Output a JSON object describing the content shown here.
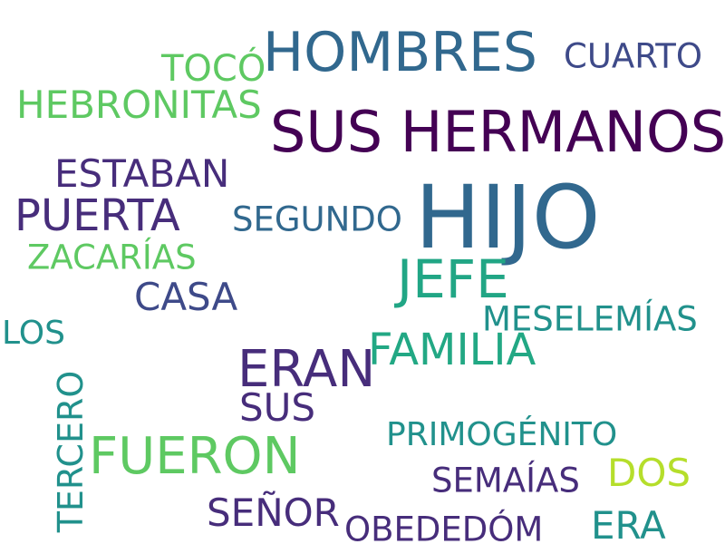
{
  "words": {
    "hijo": {
      "text": "HIJO",
      "color": "#31688e"
    },
    "sus_hermanos": {
      "text": "SUS HERMANOS",
      "color": "#440154"
    },
    "hombres": {
      "text": "HOMBRES",
      "color": "#31688e"
    },
    "cuarto": {
      "text": "CUARTO",
      "color": "#3e4a89"
    },
    "toco": {
      "text": "TOCÓ",
      "color": "#5ec962"
    },
    "hebronitas": {
      "text": "HEBRONITAS",
      "color": "#5ec962"
    },
    "estaban": {
      "text": "ESTABAN",
      "color": "#472d7b"
    },
    "puerta": {
      "text": "PUERTA",
      "color": "#472d7b"
    },
    "segundo": {
      "text": "SEGUNDO",
      "color": "#31688e"
    },
    "zacarias": {
      "text": "ZACARÍAS",
      "color": "#5ec962"
    },
    "jefe": {
      "text": "JEFE",
      "color": "#21a685"
    },
    "casa": {
      "text": "CASA",
      "color": "#3e4a89"
    },
    "meselemias": {
      "text": "MESELEMÍAS",
      "color": "#21918c"
    },
    "los": {
      "text": "LOS",
      "color": "#21918c"
    },
    "familia": {
      "text": "FAMILIA",
      "color": "#22a884"
    },
    "eran": {
      "text": "ERAN",
      "color": "#472d7b"
    },
    "sus": {
      "text": "SUS",
      "color": "#472d7b"
    },
    "tercero": {
      "text": "TERCERO",
      "color": "#21918c"
    },
    "fueron": {
      "text": "FUERON",
      "color": "#5ec962"
    },
    "primogenito": {
      "text": "PRIMOGÉNITO",
      "color": "#21918c"
    },
    "dos": {
      "text": "DOS",
      "color": "#b5de2b"
    },
    "semaias": {
      "text": "SEMAÍAS",
      "color": "#472d7b"
    },
    "senor": {
      "text": "SEÑOR",
      "color": "#472d7b"
    },
    "obededom": {
      "text": "OBEDEDÓM",
      "color": "#472d7b"
    },
    "era": {
      "text": "ERA",
      "color": "#21918c"
    }
  }
}
